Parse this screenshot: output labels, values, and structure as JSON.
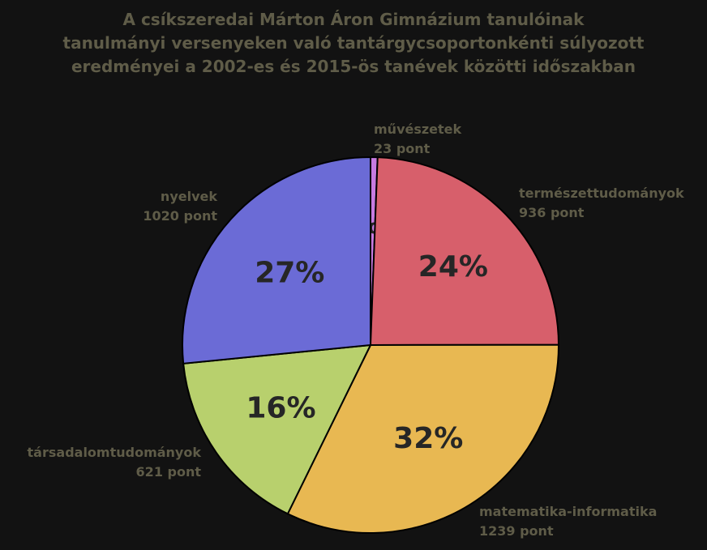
{
  "chart_data": {
    "type": "pie",
    "title": [
      "A csíkszeredai Márton Áron Gimnázium tanulóinak",
      "tanulmányi versenyeken való tantárgycsoportonkénti súlyozott",
      "eredményei a 2002-es és 2015-ös tanévek közötti időszakban"
    ],
    "slices": [
      {
        "name": "művészetek",
        "value_label": "23 pont",
        "value": 23,
        "percent_label": "1%",
        "color": "#c77be0"
      },
      {
        "name": "természettudományok",
        "value_label": "936 pont",
        "value": 936,
        "percent_label": "24%",
        "color": "#d75f6b"
      },
      {
        "name": "matematika-informatika",
        "value_label": "1239 pont",
        "value": 1239,
        "percent_label": "32%",
        "color": "#e8b852"
      },
      {
        "name": "társadalomtudományok",
        "value_label": "621 pont",
        "value": 621,
        "percent_label": "16%",
        "color": "#b8d06d"
      },
      {
        "name": "nyelvek",
        "value_label": "1020 pont",
        "value": 1020,
        "percent_label": "27%",
        "color": "#6b6bd6"
      }
    ]
  }
}
